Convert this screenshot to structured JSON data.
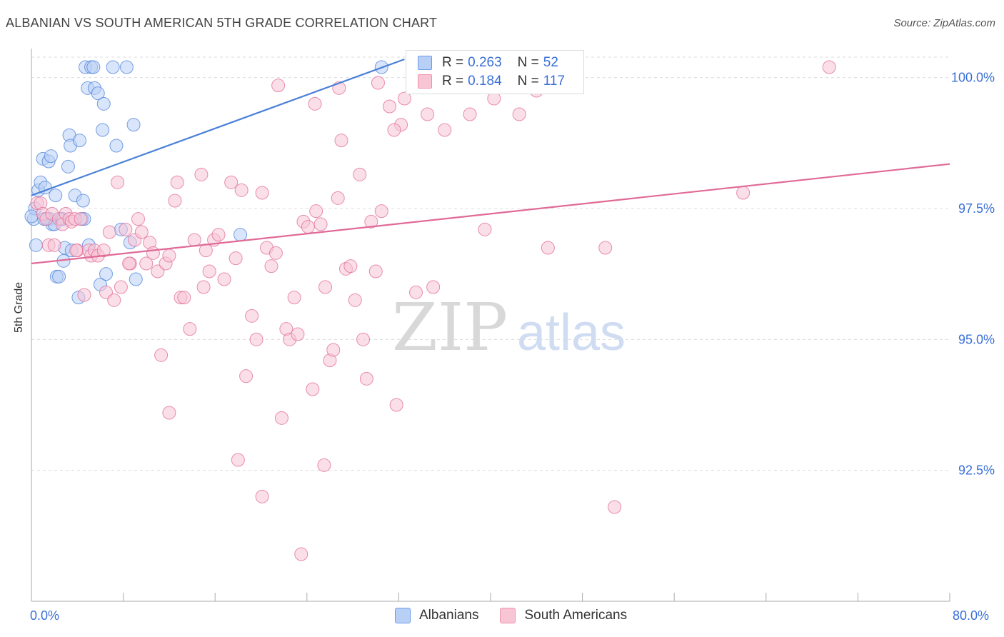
{
  "title": "ALBANIAN VS SOUTH AMERICAN 5TH GRADE CORRELATION CHART",
  "source": "Source: ZipAtlas.com",
  "watermark": {
    "zip": "ZIP",
    "atlas": "atlas"
  },
  "legend": {
    "r_label": "R =",
    "n_label": "N =",
    "rows": [
      {
        "r": "0.263",
        "n": "52",
        "color": "#6a9be8",
        "fill": "#b9d0f6"
      },
      {
        "r": "0.184",
        "n": "117",
        "color": "#ee93b0",
        "fill": "#f8c5d5"
      }
    ]
  },
  "bottom_legend": [
    "Albanians",
    "South Americans"
  ],
  "chart_data": {
    "type": "scatter",
    "title": "ALBANIAN VS SOUTH AMERICAN 5TH GRADE CORRELATION CHART",
    "xlabel": "",
    "ylabel": "5th Grade",
    "xlim": [
      0,
      80
    ],
    "ylim": [
      90.0,
      100.5
    ],
    "x_tick_labels": [
      "0.0%",
      "80.0%"
    ],
    "y_ticks": [
      92.5,
      95.0,
      97.5,
      100.0
    ],
    "y_tick_labels": [
      "92.5%",
      "95.0%",
      "97.5%",
      "100.0%"
    ],
    "grid": true,
    "legend_position": "top-center",
    "series": [
      {
        "name": "Albanians",
        "color": "#4a80d8",
        "fill": "#b9d0f6",
        "trend": {
          "x": [
            0,
            32.5
          ],
          "y": [
            97.75,
            100.35
          ]
        },
        "points": [
          [
            0.2,
            97.3
          ],
          [
            0.3,
            97.5
          ],
          [
            0.4,
            96.8
          ],
          [
            0.6,
            97.85
          ],
          [
            0.8,
            98.0
          ],
          [
            1.0,
            98.45
          ],
          [
            1.2,
            97.9
          ],
          [
            1.4,
            97.3
          ],
          [
            1.5,
            98.4
          ],
          [
            1.6,
            97.3
          ],
          [
            1.7,
            98.5
          ],
          [
            1.8,
            97.2
          ],
          [
            2.0,
            97.2
          ],
          [
            2.1,
            97.75
          ],
          [
            2.2,
            96.2
          ],
          [
            2.4,
            96.2
          ],
          [
            2.6,
            97.3
          ],
          [
            2.8,
            96.5
          ],
          [
            2.9,
            96.75
          ],
          [
            3.2,
            98.3
          ],
          [
            3.3,
            98.9
          ],
          [
            3.4,
            98.7
          ],
          [
            3.5,
            96.7
          ],
          [
            3.8,
            97.75
          ],
          [
            4.1,
            95.8
          ],
          [
            4.2,
            98.8
          ],
          [
            4.4,
            97.3
          ],
          [
            4.5,
            97.65
          ],
          [
            4.6,
            97.3
          ],
          [
            4.7,
            100.2
          ],
          [
            4.9,
            99.8
          ],
          [
            5.0,
            96.8
          ],
          [
            5.2,
            100.2
          ],
          [
            5.4,
            100.2
          ],
          [
            5.5,
            99.8
          ],
          [
            5.8,
            99.7
          ],
          [
            6.0,
            96.05
          ],
          [
            6.2,
            99.0
          ],
          [
            6.3,
            99.5
          ],
          [
            6.5,
            96.25
          ],
          [
            7.1,
            100.2
          ],
          [
            7.4,
            98.7
          ],
          [
            7.8,
            97.1
          ],
          [
            8.3,
            100.2
          ],
          [
            8.6,
            96.85
          ],
          [
            8.9,
            99.1
          ],
          [
            9.1,
            96.15
          ],
          [
            18.2,
            97.0
          ],
          [
            30.5,
            100.2
          ],
          [
            0.0,
            97.35
          ],
          [
            1.1,
            97.3
          ],
          [
            2.7,
            97.3
          ]
        ]
      },
      {
        "name": "South Americans",
        "color": "#e06a96",
        "fill": "#f8c5d5",
        "trend": {
          "x": [
            0,
            80
          ],
          "y": [
            96.45,
            98.35
          ]
        },
        "points": [
          [
            0.5,
            97.6
          ],
          [
            0.8,
            97.6
          ],
          [
            1.0,
            97.4
          ],
          [
            1.3,
            97.3
          ],
          [
            1.5,
            96.8
          ],
          [
            1.8,
            97.4
          ],
          [
            2.0,
            96.8
          ],
          [
            2.4,
            97.3
          ],
          [
            2.7,
            97.2
          ],
          [
            3.0,
            97.4
          ],
          [
            3.3,
            97.3
          ],
          [
            3.5,
            97.25
          ],
          [
            3.8,
            97.3
          ],
          [
            4.0,
            96.7
          ],
          [
            4.3,
            97.3
          ],
          [
            4.6,
            95.85
          ],
          [
            5.0,
            96.7
          ],
          [
            5.2,
            96.6
          ],
          [
            5.5,
            96.7
          ],
          [
            5.8,
            96.6
          ],
          [
            6.3,
            96.7
          ],
          [
            6.5,
            95.9
          ],
          [
            6.8,
            97.05
          ],
          [
            7.2,
            95.75
          ],
          [
            7.5,
            98.0
          ],
          [
            7.8,
            96.0
          ],
          [
            8.2,
            97.1
          ],
          [
            8.6,
            96.45
          ],
          [
            9.0,
            96.9
          ],
          [
            9.3,
            97.3
          ],
          [
            9.6,
            97.05
          ],
          [
            10.0,
            96.45
          ],
          [
            10.3,
            96.85
          ],
          [
            10.6,
            96.65
          ],
          [
            11.0,
            96.3
          ],
          [
            11.3,
            94.7
          ],
          [
            11.7,
            96.45
          ],
          [
            12.0,
            96.6
          ],
          [
            12.5,
            97.65
          ],
          [
            12.7,
            98.0
          ],
          [
            13.0,
            95.8
          ],
          [
            13.3,
            95.8
          ],
          [
            13.8,
            95.2
          ],
          [
            14.2,
            96.9
          ],
          [
            14.8,
            98.15
          ],
          [
            15.2,
            96.7
          ],
          [
            15.5,
            96.3
          ],
          [
            15.9,
            96.9
          ],
          [
            16.3,
            97.0
          ],
          [
            16.8,
            96.15
          ],
          [
            17.4,
            98.0
          ],
          [
            17.8,
            96.55
          ],
          [
            18.3,
            97.85
          ],
          [
            18.7,
            94.3
          ],
          [
            19.2,
            95.45
          ],
          [
            19.6,
            95.0
          ],
          [
            20.1,
            97.8
          ],
          [
            20.5,
            96.75
          ],
          [
            20.9,
            96.4
          ],
          [
            21.3,
            96.65
          ],
          [
            21.8,
            93.5
          ],
          [
            22.2,
            95.2
          ],
          [
            22.5,
            95.0
          ],
          [
            22.9,
            95.8
          ],
          [
            23.2,
            95.1
          ],
          [
            23.7,
            97.25
          ],
          [
            24.1,
            97.15
          ],
          [
            24.5,
            94.05
          ],
          [
            24.8,
            97.45
          ],
          [
            25.2,
            97.2
          ],
          [
            25.6,
            96.0
          ],
          [
            26.0,
            94.6
          ],
          [
            26.3,
            94.8
          ],
          [
            26.7,
            97.7
          ],
          [
            27.0,
            98.8
          ],
          [
            27.4,
            96.35
          ],
          [
            27.8,
            96.4
          ],
          [
            28.2,
            95.75
          ],
          [
            28.6,
            98.15
          ],
          [
            28.9,
            95.0
          ],
          [
            29.2,
            94.25
          ],
          [
            29.6,
            97.25
          ],
          [
            30.0,
            96.3
          ],
          [
            30.5,
            97.45
          ],
          [
            31.2,
            99.45
          ],
          [
            31.8,
            93.75
          ],
          [
            32.2,
            99.1
          ],
          [
            32.5,
            99.6
          ],
          [
            33.5,
            95.9
          ],
          [
            34.5,
            99.3
          ],
          [
            35.0,
            96.0
          ],
          [
            36.0,
            99.0
          ],
          [
            36.8,
            100.2
          ],
          [
            38.2,
            99.3
          ],
          [
            39.5,
            97.1
          ],
          [
            40.3,
            99.6
          ],
          [
            45.0,
            96.75
          ],
          [
            50.0,
            96.75
          ],
          [
            62.0,
            97.8
          ],
          [
            69.5,
            100.2
          ],
          [
            18.0,
            92.7
          ],
          [
            20.1,
            92.0
          ],
          [
            23.5,
            90.9
          ],
          [
            15.0,
            96.0
          ],
          [
            12.0,
            93.6
          ],
          [
            25.5,
            92.6
          ],
          [
            50.8,
            91.8
          ],
          [
            3.9,
            96.7
          ],
          [
            8.5,
            96.45
          ],
          [
            21.5,
            99.85
          ],
          [
            24.7,
            99.5
          ],
          [
            31.6,
            99.0
          ],
          [
            42.5,
            99.3
          ],
          [
            44.0,
            99.75
          ],
          [
            26.8,
            99.8
          ],
          [
            30.2,
            99.9
          ],
          [
            36.3,
            100.1
          ]
        ]
      }
    ]
  }
}
